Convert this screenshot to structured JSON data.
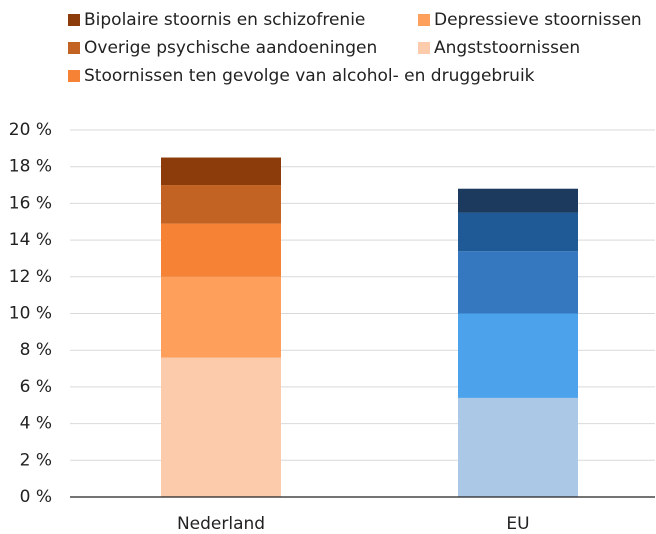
{
  "chart_data": {
    "type": "stacked_bar",
    "categories": [
      "Nederland",
      "EU"
    ],
    "series": [
      {
        "name": "Angststoornissen",
        "colors": [
          "#fbcbab",
          "#abc9e6"
        ],
        "values": [
          7.6,
          5.4
        ]
      },
      {
        "name": "Depressieve stoornissen",
        "colors": [
          "#fe9f5c",
          "#4ca3ec"
        ],
        "values": [
          4.4,
          4.6
        ]
      },
      {
        "name": "Stoornissen ten gevolge van alcohol- en druggebruik",
        "colors": [
          "#f58235",
          "#3578bf"
        ],
        "values": [
          2.9,
          3.4
        ]
      },
      {
        "name": "Overige psychische aandoeningen",
        "colors": [
          "#c26324",
          "#1f5a97"
        ],
        "values": [
          2.1,
          2.1
        ]
      },
      {
        "name": "Bipolaire stoornis en schizofrenie",
        "colors": [
          "#8c3c0a",
          "#1b3a5e"
        ],
        "values": [
          1.5,
          1.3
        ]
      }
    ],
    "ylim": [
      0,
      20
    ],
    "yticks": [
      {
        "value": 0,
        "label": "0 %"
      },
      {
        "value": 2,
        "label": "2 %"
      },
      {
        "value": 4,
        "label": "4 %"
      },
      {
        "value": 6,
        "label": "6 %"
      },
      {
        "value": 8,
        "label": "8 %"
      },
      {
        "value": 10,
        "label": "10 %"
      },
      {
        "value": 12,
        "label": "12 %"
      },
      {
        "value": 14,
        "label": "14 %"
      },
      {
        "value": 16,
        "label": "16 %"
      },
      {
        "value": 18,
        "label": "18 %"
      },
      {
        "value": 20,
        "label": "20 %"
      }
    ],
    "grid": true
  }
}
